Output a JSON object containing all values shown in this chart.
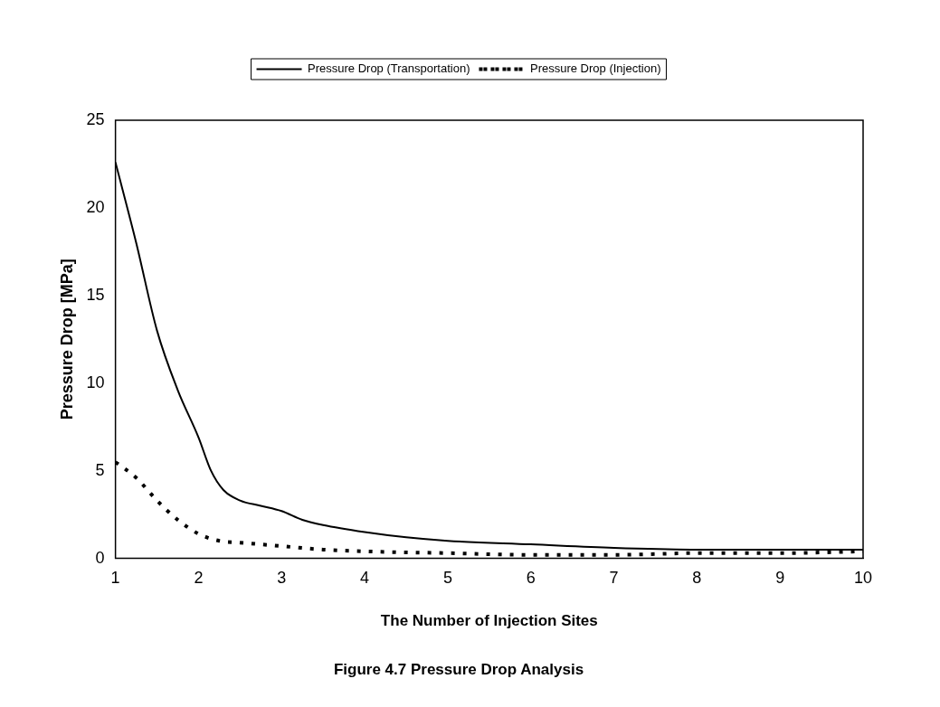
{
  "chart_data": {
    "type": "line",
    "title": "Figure 4.7 Pressure Drop Analysis",
    "xlabel": "The Number of Injection Sites",
    "ylabel": "Pressure Drop [MPa]",
    "xlim": [
      1,
      10
    ],
    "xticks": [
      1,
      2,
      3,
      4,
      5,
      6,
      7,
      8,
      9,
      10
    ],
    "ylim": [
      0,
      25
    ],
    "yticks": [
      0,
      5,
      10,
      15,
      20,
      25
    ],
    "grid": false,
    "legend": "top",
    "marker": "none",
    "series": [
      {
        "name": "Pressure Drop (Transportation)",
        "color": "#000000",
        "line_style": "solid",
        "x": [
          1,
          1.25,
          1.5,
          1.75,
          2,
          2.15,
          2.3,
          2.5,
          2.75,
          3,
          3.25,
          3.5,
          4,
          4.5,
          5,
          6,
          7,
          8,
          9,
          10
        ],
        "values": [
          22.6,
          18,
          13,
          9.6,
          6.9,
          5,
          3.9,
          3.3,
          3,
          2.7,
          2.2,
          1.9,
          1.5,
          1.2,
          1.0,
          0.8,
          0.6,
          0.5,
          0.5,
          0.5
        ]
      },
      {
        "name": "Pressure Drop (Injection)",
        "color": "#000000",
        "line_style": "dotted",
        "x": [
          1,
          1.25,
          1.5,
          1.75,
          2,
          2.25,
          2.5,
          3,
          3.5,
          4,
          5,
          6,
          7,
          8,
          9,
          10
        ],
        "values": [
          5.5,
          4.6,
          3.3,
          2.2,
          1.4,
          1.0,
          0.9,
          0.7,
          0.5,
          0.4,
          0.3,
          0.2,
          0.2,
          0.3,
          0.3,
          0.4
        ]
      }
    ]
  }
}
